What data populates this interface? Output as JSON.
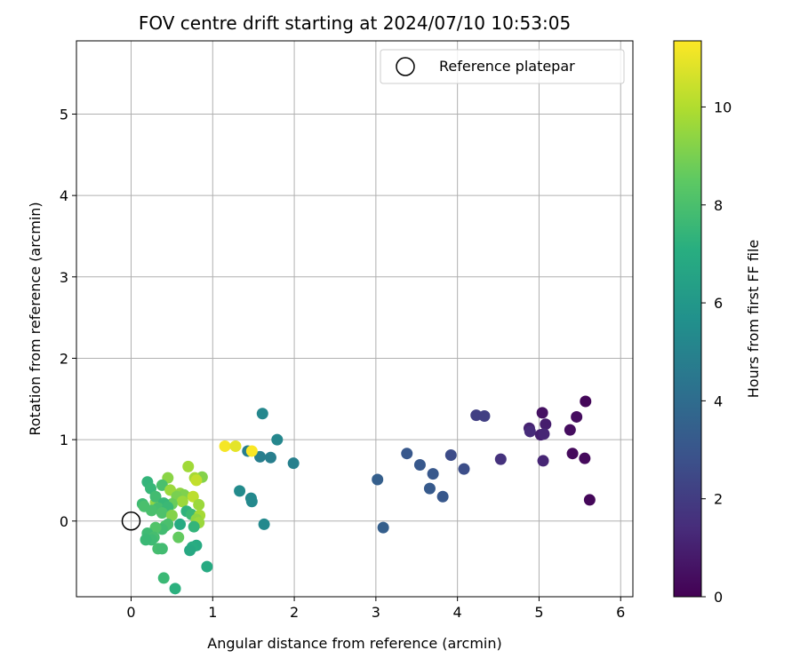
{
  "chart_data": {
    "type": "scatter",
    "title": "FOV centre drift starting at 2024/07/10 10:53:05",
    "xlabel": "Angular distance from reference (arcmin)",
    "ylabel": "Rotation from reference (arcmin)",
    "xlim": [
      -0.67,
      6.15
    ],
    "ylim": [
      -0.93,
      5.9
    ],
    "xticks": [
      0,
      1,
      2,
      3,
      4,
      5,
      6
    ],
    "yticks": [
      0,
      1,
      2,
      3,
      4,
      5
    ],
    "grid": true,
    "legend": {
      "label": "Reference platepar",
      "placement": "top-right"
    },
    "reference_point": {
      "x": 0,
      "y": 0
    },
    "colorbar": {
      "label": "Hours from first FF file",
      "range": [
        0,
        11.35
      ],
      "ticks": [
        0,
        2,
        4,
        6,
        8,
        10
      ],
      "colormap": "viridis"
    },
    "points": [
      {
        "x": 5.57,
        "y": 1.47,
        "h": 0.2
      },
      {
        "x": 5.04,
        "y": 1.33,
        "h": 0.5
      },
      {
        "x": 5.46,
        "y": 1.28,
        "h": 0.4
      },
      {
        "x": 5.08,
        "y": 1.19,
        "h": 0.9
      },
      {
        "x": 5.38,
        "y": 1.12,
        "h": 0.4
      },
      {
        "x": 4.88,
        "y": 1.14,
        "h": 1.1
      },
      {
        "x": 4.89,
        "y": 1.1,
        "h": 1.4
      },
      {
        "x": 5.02,
        "y": 1.06,
        "h": 1.0
      },
      {
        "x": 5.06,
        "y": 1.07,
        "h": 1.2
      },
      {
        "x": 5.41,
        "y": 0.83,
        "h": 0.3
      },
      {
        "x": 5.56,
        "y": 0.77,
        "h": 0.3
      },
      {
        "x": 5.05,
        "y": 0.74,
        "h": 1.2
      },
      {
        "x": 5.62,
        "y": 0.26,
        "h": 0.2
      },
      {
        "x": 4.53,
        "y": 0.76,
        "h": 1.6
      },
      {
        "x": 4.23,
        "y": 1.3,
        "h": 2.1
      },
      {
        "x": 4.33,
        "y": 1.29,
        "h": 2.1
      },
      {
        "x": 3.92,
        "y": 0.81,
        "h": 2.6
      },
      {
        "x": 4.08,
        "y": 0.64,
        "h": 2.7
      },
      {
        "x": 3.38,
        "y": 0.83,
        "h": 3.1
      },
      {
        "x": 3.54,
        "y": 0.69,
        "h": 3.1
      },
      {
        "x": 3.7,
        "y": 0.58,
        "h": 3.1
      },
      {
        "x": 3.66,
        "y": 0.4,
        "h": 3.2
      },
      {
        "x": 3.82,
        "y": 0.3,
        "h": 3.1
      },
      {
        "x": 3.02,
        "y": 0.51,
        "h": 3.4
      },
      {
        "x": 3.09,
        "y": -0.08,
        "h": 3.4
      },
      {
        "x": 1.99,
        "y": 0.71,
        "h": 4.9
      },
      {
        "x": 1.79,
        "y": 1.0,
        "h": 5.2
      },
      {
        "x": 1.61,
        "y": 1.32,
        "h": 5.2
      },
      {
        "x": 1.71,
        "y": 0.78,
        "h": 4.8
      },
      {
        "x": 1.58,
        "y": 0.79,
        "h": 4.8
      },
      {
        "x": 1.43,
        "y": 0.86,
        "h": 4.8
      },
      {
        "x": 1.33,
        "y": 0.37,
        "h": 5.4
      },
      {
        "x": 1.47,
        "y": 0.28,
        "h": 5.3
      },
      {
        "x": 1.48,
        "y": 0.24,
        "h": 5.3
      },
      {
        "x": 1.63,
        "y": -0.04,
        "h": 5.3
      },
      {
        "x": 1.15,
        "y": 0.92,
        "h": 11.2
      },
      {
        "x": 1.28,
        "y": 0.92,
        "h": 10.9
      },
      {
        "x": 1.48,
        "y": 0.86,
        "h": 11.3
      },
      {
        "x": 0.7,
        "y": 0.67,
        "h": 9.7
      },
      {
        "x": 0.87,
        "y": 0.54,
        "h": 9.2
      },
      {
        "x": 0.78,
        "y": 0.53,
        "h": 9.8
      },
      {
        "x": 0.8,
        "y": 0.5,
        "h": 10.3
      },
      {
        "x": 0.45,
        "y": 0.53,
        "h": 9.3
      },
      {
        "x": 0.38,
        "y": 0.44,
        "h": 8.0
      },
      {
        "x": 0.48,
        "y": 0.38,
        "h": 9.6
      },
      {
        "x": 0.6,
        "y": 0.34,
        "h": 9.4
      },
      {
        "x": 0.65,
        "y": 0.32,
        "h": 9.1
      },
      {
        "x": 0.76,
        "y": 0.3,
        "h": 10.2
      },
      {
        "x": 0.56,
        "y": 0.3,
        "h": 9.0
      },
      {
        "x": 0.63,
        "y": 0.24,
        "h": 9.6
      },
      {
        "x": 0.3,
        "y": 0.23,
        "h": 9.4
      },
      {
        "x": 0.83,
        "y": 0.2,
        "h": 9.6
      },
      {
        "x": 0.5,
        "y": 0.21,
        "h": 8.7
      },
      {
        "x": 0.2,
        "y": 0.48,
        "h": 7.4
      },
      {
        "x": 0.24,
        "y": 0.4,
        "h": 7.5
      },
      {
        "x": 0.3,
        "y": 0.3,
        "h": 7.8
      },
      {
        "x": 0.4,
        "y": 0.22,
        "h": 7.5
      },
      {
        "x": 0.14,
        "y": 0.21,
        "h": 7.7
      },
      {
        "x": 0.16,
        "y": 0.18,
        "h": 8.0
      },
      {
        "x": 0.33,
        "y": 0.16,
        "h": 7.9
      },
      {
        "x": 0.25,
        "y": 0.13,
        "h": 8.0
      },
      {
        "x": 0.45,
        "y": 0.17,
        "h": 7.6
      },
      {
        "x": 0.38,
        "y": 0.1,
        "h": 8.1
      },
      {
        "x": 0.68,
        "y": 0.12,
        "h": 7.3
      },
      {
        "x": 0.74,
        "y": 0.08,
        "h": 7.6
      },
      {
        "x": 0.84,
        "y": 0.07,
        "h": 9.8
      },
      {
        "x": 0.5,
        "y": 0.07,
        "h": 9.2
      },
      {
        "x": 0.8,
        "y": 0.02,
        "h": 9.4
      },
      {
        "x": 0.83,
        "y": -0.02,
        "h": 9.6
      },
      {
        "x": 0.6,
        "y": -0.04,
        "h": 6.9
      },
      {
        "x": 0.42,
        "y": -0.06,
        "h": 8.1
      },
      {
        "x": 0.45,
        "y": -0.04,
        "h": 8.0
      },
      {
        "x": 0.38,
        "y": -0.1,
        "h": 7.8
      },
      {
        "x": 0.3,
        "y": -0.08,
        "h": 8.2
      },
      {
        "x": 0.77,
        "y": -0.07,
        "h": 7.4
      },
      {
        "x": 0.2,
        "y": -0.15,
        "h": 7.7
      },
      {
        "x": 0.28,
        "y": -0.2,
        "h": 7.9
      },
      {
        "x": 0.25,
        "y": -0.23,
        "h": 7.7
      },
      {
        "x": 0.18,
        "y": -0.23,
        "h": 7.6
      },
      {
        "x": 0.58,
        "y": -0.2,
        "h": 8.6
      },
      {
        "x": 0.8,
        "y": -0.3,
        "h": 6.9
      },
      {
        "x": 0.75,
        "y": -0.32,
        "h": 7.0
      },
      {
        "x": 0.72,
        "y": -0.36,
        "h": 6.8
      },
      {
        "x": 0.33,
        "y": -0.34,
        "h": 7.9
      },
      {
        "x": 0.38,
        "y": -0.34,
        "h": 7.8
      },
      {
        "x": 0.93,
        "y": -0.56,
        "h": 6.9
      },
      {
        "x": 0.4,
        "y": -0.7,
        "h": 7.6
      },
      {
        "x": 0.54,
        "y": -0.83,
        "h": 7.2
      }
    ]
  }
}
